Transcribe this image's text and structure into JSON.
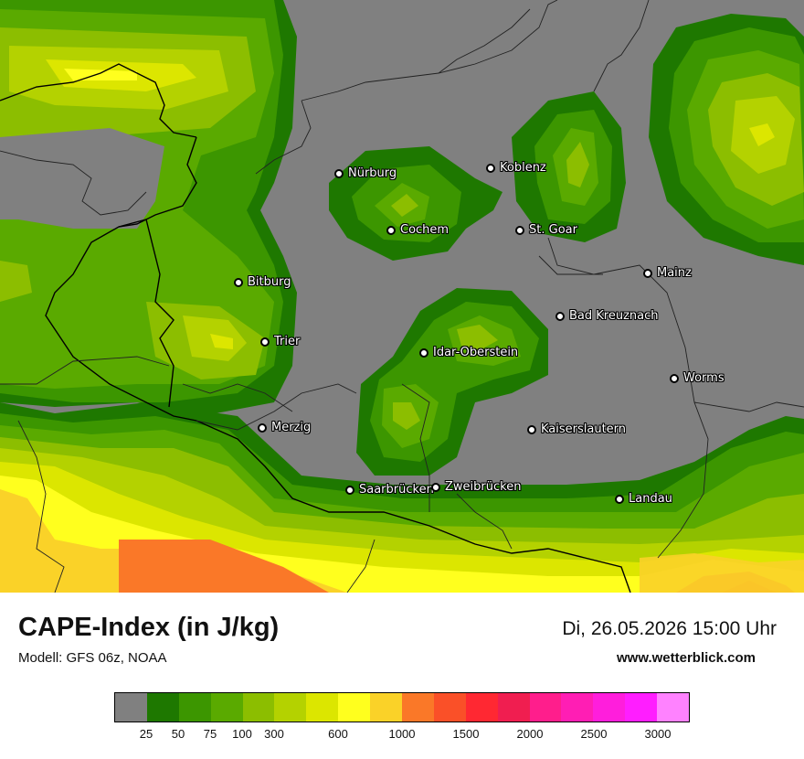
{
  "map": {
    "cities": [
      {
        "name": "Nürburg",
        "id": "nuerburg"
      },
      {
        "name": "Koblenz",
        "id": "koblenz"
      },
      {
        "name": "Cochem",
        "id": "cochem"
      },
      {
        "name": "St. Goar",
        "id": "st-goar"
      },
      {
        "name": "Mainz",
        "id": "mainz"
      },
      {
        "name": "Bitburg",
        "id": "bitburg"
      },
      {
        "name": "Bad Kreuznach",
        "id": "bad-kreuznach"
      },
      {
        "name": "Trier",
        "id": "trier"
      },
      {
        "name": "Idar-Oberstein",
        "id": "idar-oberstein"
      },
      {
        "name": "Worms",
        "id": "worms"
      },
      {
        "name": "Merzig",
        "id": "merzig"
      },
      {
        "name": "Kaiserslautern",
        "id": "kaiserslautern"
      },
      {
        "name": "Saarbrücken",
        "id": "saarbruecken"
      },
      {
        "name": "Zweibrücken",
        "id": "zweibruecken"
      },
      {
        "name": "Landau",
        "id": "landau"
      }
    ]
  },
  "header": {
    "title": "CAPE-Index (in J/kg)",
    "model": "Modell: GFS 06z, NOAA",
    "datetime": "Di, 26.05.2026 15:00 Uhr",
    "website": "www.wetterblick.com"
  },
  "legend": {
    "colors": [
      "#808080",
      "#1e7800",
      "#3c9600",
      "#5aaa00",
      "#8cbe00",
      "#b4d200",
      "#dce600",
      "#ffff1e",
      "#fad228",
      "#fa7828",
      "#fa5028",
      "#ff2832",
      "#f01e50",
      "#ff1e8c",
      "#ff1eb4",
      "#ff1edc",
      "#ff1eff",
      "#ff82ff"
    ],
    "ticks": [
      "25",
      "50",
      "75",
      "100",
      "300",
      "600",
      "1000",
      "1500",
      "2000",
      "2500",
      "3000"
    ]
  }
}
